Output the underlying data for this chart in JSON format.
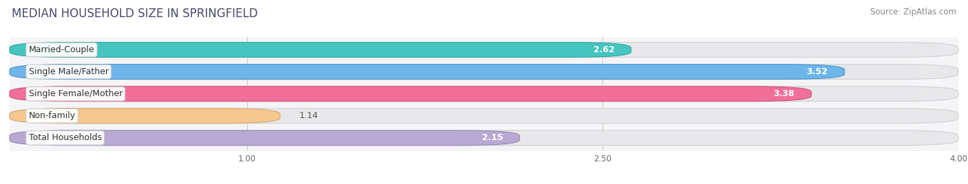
{
  "title": "MEDIAN HOUSEHOLD SIZE IN SPRINGFIELD",
  "source": "Source: ZipAtlas.com",
  "categories": [
    "Married-Couple",
    "Single Male/Father",
    "Single Female/Mother",
    "Non-family",
    "Total Households"
  ],
  "values": [
    2.62,
    3.52,
    3.38,
    1.14,
    2.15
  ],
  "bar_colors": [
    "#45c4c0",
    "#6eb5ea",
    "#f07099",
    "#f5c890",
    "#b8a8d4"
  ],
  "bar_edge_colors": [
    "#30a8a4",
    "#4a95cc",
    "#d05080",
    "#d5a872",
    "#9888b4"
  ],
  "bg_bar_color": "#e8e8ea",
  "bg_bar_edge": "#d0d0d4",
  "xlim_max": 4.0,
  "xticks": [
    1.0,
    2.5,
    4.0
  ],
  "title_fontsize": 12,
  "source_fontsize": 8.5,
  "label_fontsize": 9,
  "value_fontsize": 9,
  "background_color": "#ffffff",
  "bar_area_bg": "#f5f5f7",
  "value_inside_threshold": 2.0
}
